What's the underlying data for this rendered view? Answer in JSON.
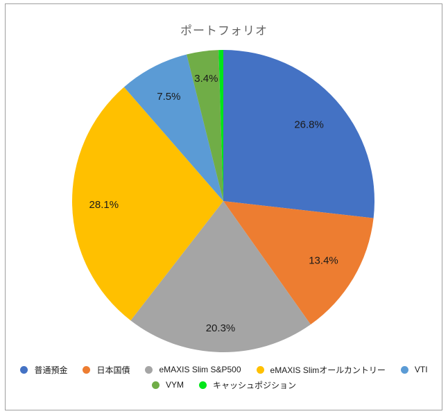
{
  "window": {
    "background_color": "#ffffff",
    "frame_border_color": "#9E9E9E"
  },
  "chart_data": {
    "type": "pie",
    "title": "ポートフォリオ",
    "title_color": "#636363",
    "label_color": "#1a1a1a",
    "legend_position": "bottom",
    "start_angle_deg": 0,
    "direction": "clockwise",
    "slices": [
      {
        "name": "普通預金",
        "value": 26.8,
        "label": "26.8%",
        "color": "#4472C4"
      },
      {
        "name": "日本国債",
        "value": 13.4,
        "label": "13.4%",
        "color": "#ED7D31"
      },
      {
        "name": "eMAXIS Slim S&P500",
        "value": 20.3,
        "label": "20.3%",
        "color": "#A5A5A5"
      },
      {
        "name": "eMAXIS Slimオールカントリー",
        "value": 28.1,
        "label": "28.1%",
        "color": "#FFC000"
      },
      {
        "name": "VTI",
        "value": 7.5,
        "label": "7.5%",
        "color": "#5B9BD5"
      },
      {
        "name": "VYM",
        "value": 3.4,
        "label": "3.4%",
        "color": "#70AD47"
      },
      {
        "name": "キャッシュポジション",
        "value": 0.5,
        "label": "",
        "color": "#00E619"
      }
    ],
    "legend_rows": [
      [
        0,
        1,
        2,
        3,
        4
      ],
      [
        5,
        6
      ]
    ]
  }
}
